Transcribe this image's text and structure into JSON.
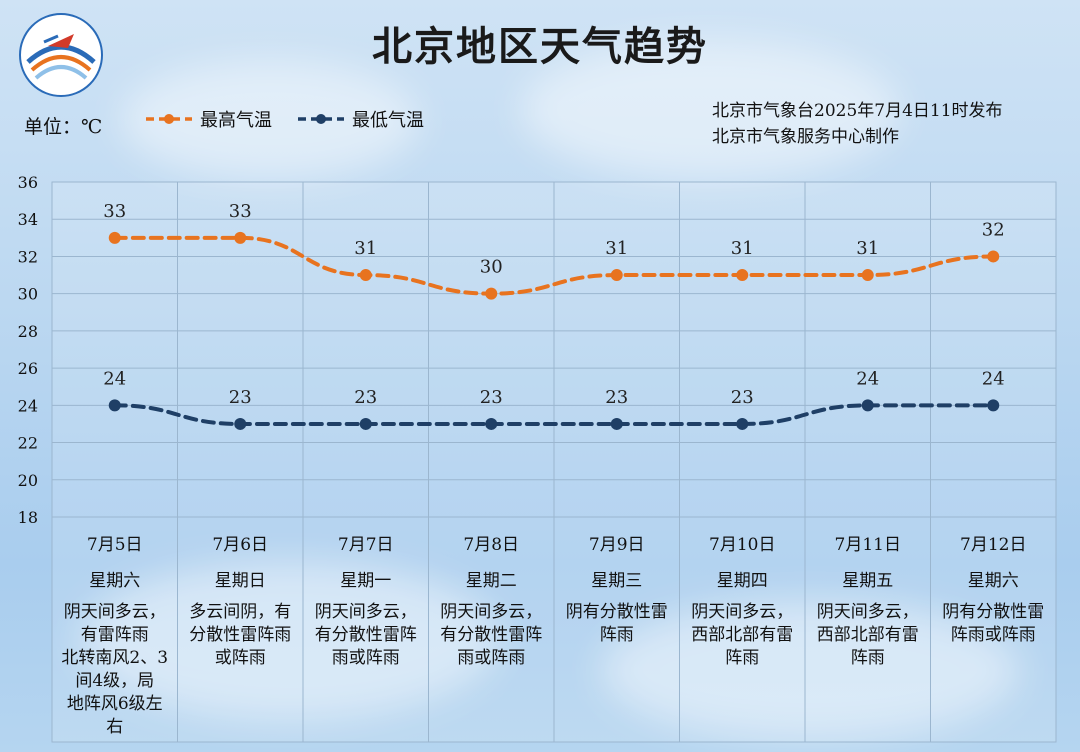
{
  "title": "北京地区天气趋势",
  "unit_label": "单位：℃",
  "issuer": {
    "line1": "北京市气象台2025年7月4日11时发布",
    "line2": "北京市气象服务中心制作"
  },
  "colors": {
    "high": "#e8731f",
    "low": "#1f3f66",
    "grid": "#9bb6cf"
  },
  "chart_data": {
    "type": "line",
    "categories": [
      "7月5日",
      "7月6日",
      "7月7日",
      "7月8日",
      "7月9日",
      "7月10日",
      "7月11日",
      "7月12日"
    ],
    "weekdays": [
      "星期六",
      "星期日",
      "星期一",
      "星期二",
      "星期三",
      "星期四",
      "星期五",
      "星期六"
    ],
    "descriptions": [
      [
        "阴天间多云，",
        "有雷阵雨",
        "北转南风2、3",
        "间4级，局",
        "地阵风6级左",
        "右"
      ],
      [
        "多云间阴，有",
        "分散性雷阵雨",
        "或阵雨"
      ],
      [
        "阴天间多云，",
        "有分散性雷阵",
        "雨或阵雨"
      ],
      [
        "阴天间多云，",
        "有分散性雷阵",
        "雨或阵雨"
      ],
      [
        "阴有分散性雷",
        "阵雨"
      ],
      [
        "阴天间多云，",
        "西部北部有雷",
        "阵雨"
      ],
      [
        "阴天间多云，",
        "西部北部有雷",
        "阵雨"
      ],
      [
        "阴有分散性雷",
        "阵雨或阵雨"
      ]
    ],
    "series": [
      {
        "name": "最高气温",
        "values": [
          33,
          33,
          31,
          30,
          31,
          31,
          31,
          32
        ]
      },
      {
        "name": "最低气温",
        "values": [
          24,
          23,
          23,
          23,
          23,
          23,
          24,
          24
        ]
      }
    ],
    "ylim": [
      18,
      36
    ],
    "yticks": [
      "18",
      "20",
      "22",
      "24",
      "26",
      "28",
      "30",
      "32",
      "34",
      "36"
    ],
    "grid": true,
    "legend_position": "top-left"
  }
}
